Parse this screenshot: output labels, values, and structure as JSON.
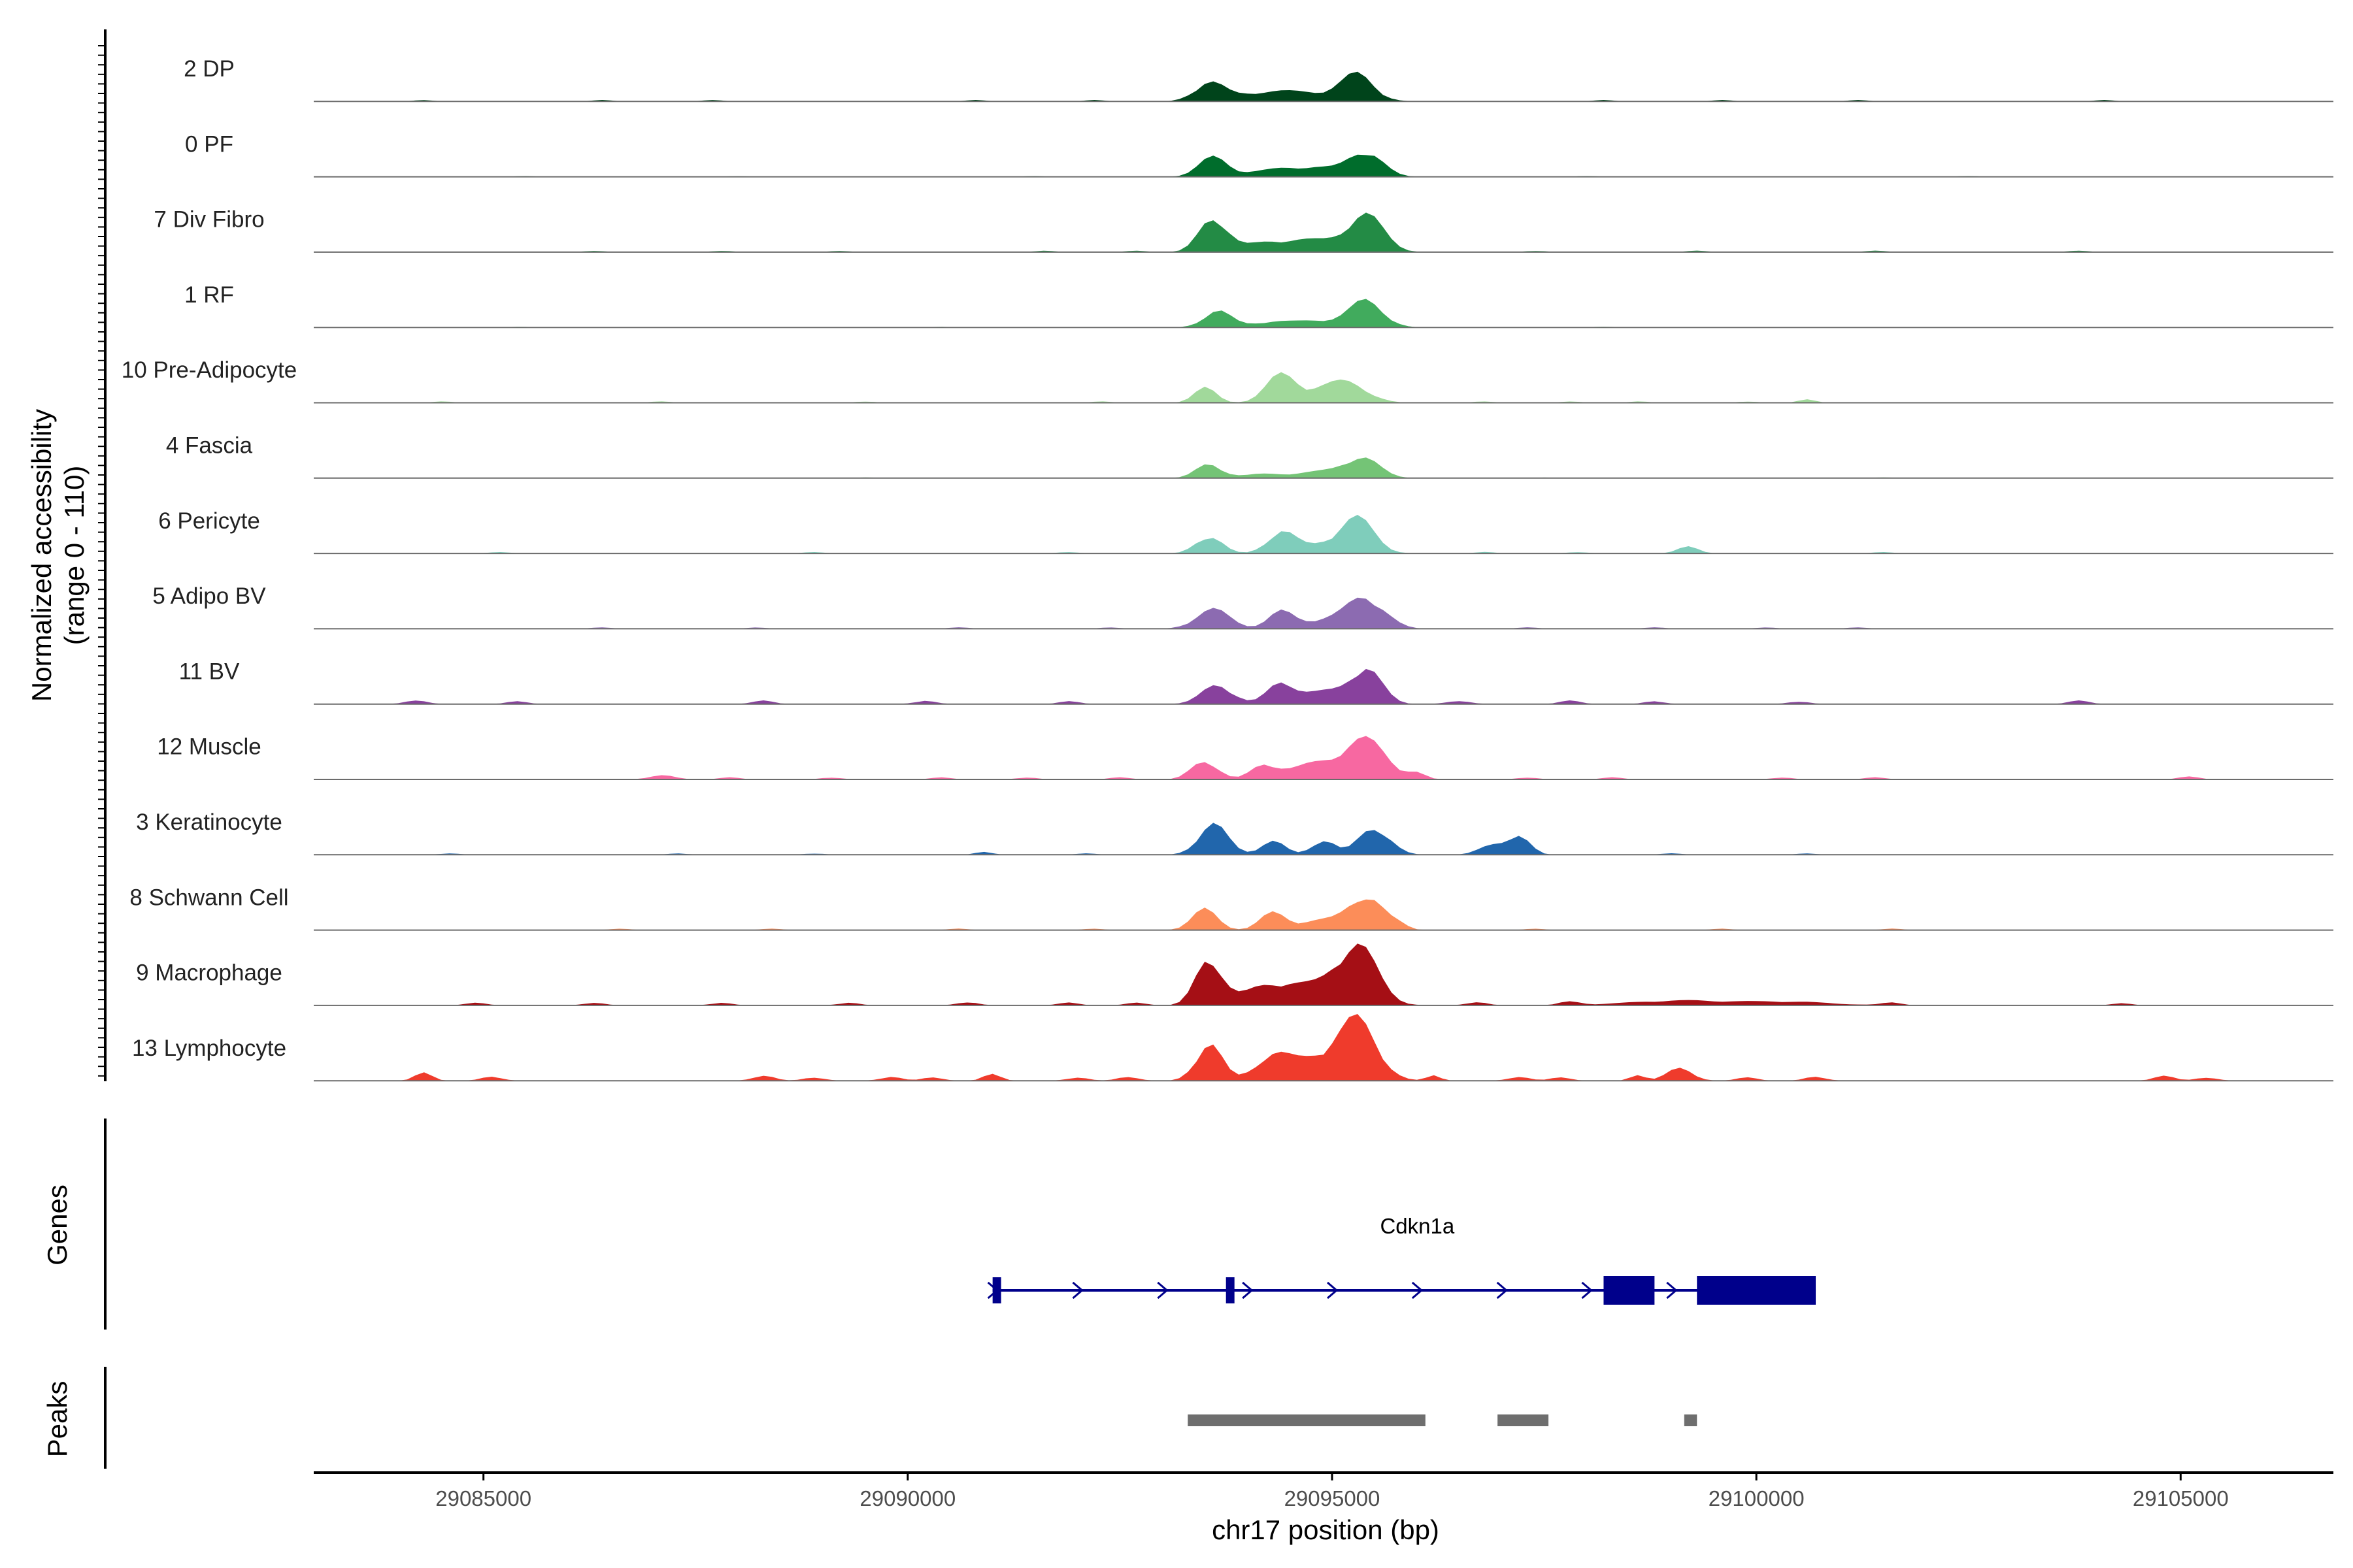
{
  "chart_data": {
    "type": "area",
    "title": "",
    "region": {
      "chrom": "chr17",
      "start": 29083000,
      "end": 29106800
    },
    "y_axis_title": [
      "Normalized accessibility",
      "(range 0 - 110)"
    ],
    "ylim": [
      0,
      110
    ],
    "x_axis_title": "chr17 position (bp)",
    "x_ticks": [
      29085000,
      29090000,
      29095000,
      29100000,
      29105000
    ],
    "x_tick_labels": [
      "29085000",
      "29090000",
      "29095000",
      "29100000",
      "29105000"
    ],
    "bin_size_bp": 100,
    "tracks": [
      {
        "name": "2 DP",
        "color": "#00441b",
        "peaks": [
          [
            29093550,
            170,
            26
          ],
          [
            29095300,
            190,
            35
          ],
          [
            29094100,
            350,
            8
          ],
          [
            29094700,
            450,
            12
          ]
        ],
        "noise": [
          [
            29084300,
            2
          ],
          [
            29086400,
            2
          ],
          [
            29087700,
            2
          ],
          [
            29090800,
            2
          ],
          [
            29092200,
            2
          ],
          [
            29098200,
            2
          ],
          [
            29099600,
            2
          ],
          [
            29101200,
            2
          ],
          [
            29104100,
            2
          ]
        ]
      },
      {
        "name": "0 PF",
        "color": "#006d2c",
        "peaks": [
          [
            29093600,
            170,
            28
          ],
          [
            29095400,
            190,
            36
          ],
          [
            29094300,
            300,
            9
          ],
          [
            29094850,
            300,
            12
          ]
        ],
        "noise": [
          [
            29085500,
            1
          ],
          [
            29088000,
            1
          ],
          [
            29091500,
            1
          ],
          [
            29098000,
            1
          ],
          [
            29102500,
            1
          ]
        ]
      },
      {
        "name": "7 Div Fibro",
        "color": "#238b45",
        "peaks": [
          [
            29093600,
            160,
            50
          ],
          [
            29095400,
            210,
            52
          ],
          [
            29094200,
            300,
            12
          ],
          [
            29094800,
            320,
            16
          ]
        ],
        "noise": [
          [
            29086300,
            2
          ],
          [
            29087800,
            2
          ],
          [
            29089200,
            2
          ],
          [
            29091600,
            2
          ],
          [
            29092700,
            2
          ],
          [
            29097400,
            2
          ],
          [
            29099300,
            2
          ],
          [
            29101400,
            2
          ],
          [
            29103800,
            2
          ]
        ]
      },
      {
        "name": "1 RF",
        "color": "#41ab5d",
        "peaks": [
          [
            29093650,
            160,
            24
          ],
          [
            29095400,
            200,
            38
          ],
          [
            29094300,
            250,
            8
          ],
          [
            29094850,
            250,
            9
          ]
        ],
        "noise": [
          [
            29085400,
            1
          ],
          [
            29090400,
            1
          ],
          [
            29098200,
            1
          ]
        ]
      },
      {
        "name": "10 Pre-Adipocyte",
        "color": "#a1d99b",
        "peaks": [
          [
            29093500,
            130,
            22
          ],
          [
            29094400,
            180,
            40
          ],
          [
            29095200,
            230,
            27
          ],
          [
            29094850,
            200,
            14
          ],
          [
            29100600,
            90,
            6
          ]
        ],
        "noise": [
          [
            29084500,
            2
          ],
          [
            29087100,
            2
          ],
          [
            29089500,
            2
          ],
          [
            29092300,
            2
          ],
          [
            29096800,
            2
          ],
          [
            29097800,
            2
          ],
          [
            29098600,
            2
          ],
          [
            29099900,
            2
          ]
        ]
      },
      {
        "name": "4 Fascia",
        "color": "#74c476",
        "peaks": [
          [
            29093550,
            150,
            20
          ],
          [
            29095350,
            200,
            30
          ],
          [
            29094200,
            250,
            6
          ],
          [
            29094850,
            250,
            9
          ]
        ],
        "noise": [
          [
            29089500,
            1
          ],
          [
            29097500,
            1
          ],
          [
            29101500,
            1
          ]
        ]
      },
      {
        "name": "6 Pericyte",
        "color": "#7fcdbb",
        "peaks": [
          [
            29093550,
            150,
            26
          ],
          [
            29094400,
            160,
            30
          ],
          [
            29095300,
            200,
            47
          ],
          [
            29094900,
            300,
            12
          ],
          [
            29099200,
            120,
            10
          ]
        ],
        "noise": [
          [
            29085200,
            2
          ],
          [
            29088900,
            2
          ],
          [
            29091900,
            2
          ],
          [
            29096800,
            2
          ],
          [
            29097900,
            2
          ],
          [
            29101500,
            2
          ]
        ]
      },
      {
        "name": "5 Adipo BV",
        "color": "#8c6bb1",
        "peaks": [
          [
            29093600,
            200,
            28
          ],
          [
            29094400,
            150,
            24
          ],
          [
            29095400,
            220,
            45
          ],
          [
            29094900,
            250,
            12
          ]
        ],
        "noise": [
          [
            29086400,
            2
          ],
          [
            29088200,
            2
          ],
          [
            29090600,
            2
          ],
          [
            29092400,
            2
          ],
          [
            29097300,
            2
          ],
          [
            29098800,
            2
          ],
          [
            29100100,
            2
          ],
          [
            29101200,
            2
          ]
        ]
      },
      {
        "name": "11 BV",
        "color": "#88419d",
        "peaks": [
          [
            29093650,
            180,
            28
          ],
          [
            29094400,
            160,
            30
          ],
          [
            29095400,
            180,
            52
          ],
          [
            29094900,
            250,
            18
          ],
          [
            29096500,
            150,
            4
          ]
        ],
        "noise": [
          [
            29084200,
            6
          ],
          [
            29085400,
            4
          ],
          [
            29088300,
            5
          ],
          [
            29090200,
            5
          ],
          [
            29091900,
            4
          ],
          [
            29097800,
            5
          ],
          [
            29098800,
            4
          ],
          [
            29100500,
            4
          ],
          [
            29103800,
            5
          ]
        ]
      },
      {
        "name": "12 Muscle",
        "color": "#f768a1",
        "peaks": [
          [
            29093500,
            150,
            28
          ],
          [
            29094200,
            150,
            20
          ],
          [
            29095400,
            250,
            55
          ],
          [
            29094800,
            300,
            22
          ],
          [
            29096000,
            100,
            8
          ],
          [
            29087100,
            150,
            6
          ]
        ],
        "noise": [
          [
            29087900,
            3
          ],
          [
            29089100,
            3
          ],
          [
            29090400,
            3
          ],
          [
            29091400,
            3
          ],
          [
            29092500,
            3
          ],
          [
            29097300,
            3
          ],
          [
            29098300,
            3
          ],
          [
            29100300,
            3
          ],
          [
            29101400,
            3
          ],
          [
            29105100,
            4
          ]
        ]
      },
      {
        "name": "3 Keratinocyte",
        "color": "#2166ac",
        "peaks": [
          [
            29093600,
            170,
            44
          ],
          [
            29094300,
            140,
            20
          ],
          [
            29094900,
            130,
            22
          ],
          [
            29095500,
            180,
            40
          ],
          [
            29096900,
            160,
            14
          ],
          [
            29097200,
            130,
            26
          ],
          [
            29090900,
            100,
            4
          ]
        ],
        "noise": [
          [
            29084600,
            2
          ],
          [
            29087300,
            2
          ],
          [
            29088900,
            2
          ],
          [
            29092100,
            2
          ],
          [
            29099000,
            2
          ],
          [
            29100600,
            2
          ]
        ]
      },
      {
        "name": "8 Schwann Cell",
        "color": "#fc8d59",
        "peaks": [
          [
            29093500,
            150,
            30
          ],
          [
            29094300,
            150,
            24
          ],
          [
            29095400,
            200,
            50
          ],
          [
            29094850,
            250,
            14
          ],
          [
            29095800,
            100,
            6
          ]
        ],
        "noise": [
          [
            29086600,
            2
          ],
          [
            29088400,
            2
          ],
          [
            29090600,
            2
          ],
          [
            29092200,
            2
          ],
          [
            29097400,
            2
          ],
          [
            29099600,
            2
          ],
          [
            29101600,
            2
          ]
        ]
      },
      {
        "name": "9 Macrophage",
        "color": "#a50f15",
        "peaks": [
          [
            29093550,
            150,
            68
          ],
          [
            29095300,
            230,
            80
          ],
          [
            29094200,
            300,
            20
          ],
          [
            29094750,
            400,
            25
          ],
          [
            29099100,
            600,
            7
          ],
          [
            29100400,
            500,
            5
          ]
        ],
        "noise": [
          [
            29084900,
            4
          ],
          [
            29086300,
            4
          ],
          [
            29087800,
            4
          ],
          [
            29089300,
            4
          ],
          [
            29090700,
            5
          ],
          [
            29091900,
            4
          ],
          [
            29092700,
            4
          ],
          [
            29096700,
            5
          ],
          [
            29097800,
            5
          ],
          [
            29101600,
            4
          ],
          [
            29104300,
            3
          ]
        ]
      },
      {
        "name": "13 Lymphocyte",
        "color": "#ef3b2c",
        "peaks": [
          [
            29093550,
            150,
            55
          ],
          [
            29095300,
            230,
            85
          ],
          [
            29094300,
            200,
            36
          ],
          [
            29094800,
            250,
            30
          ],
          [
            29091000,
            100,
            10
          ],
          [
            29084300,
            100,
            12
          ],
          [
            29099100,
            150,
            18
          ],
          [
            29096200,
            80,
            8
          ],
          [
            29098600,
            80,
            10
          ]
        ],
        "noise": [
          [
            29085100,
            6
          ],
          [
            29088300,
            8
          ],
          [
            29088900,
            5
          ],
          [
            29089800,
            6
          ],
          [
            29090300,
            5
          ],
          [
            29092000,
            5
          ],
          [
            29092600,
            6
          ],
          [
            29097200,
            6
          ],
          [
            29097700,
            5
          ],
          [
            29099900,
            5
          ],
          [
            29100700,
            6
          ],
          [
            29104800,
            7
          ],
          [
            29105300,
            5
          ]
        ]
      }
    ],
    "genes": [
      {
        "name": "Cdkn1a",
        "strand": "+",
        "start": 29091000,
        "end": 29100700,
        "exons": [
          [
            29091000,
            29091100,
            "utr"
          ],
          [
            29093750,
            29093850,
            "utr"
          ],
          [
            29098200,
            29098800,
            "cds"
          ],
          [
            29099300,
            29100700,
            "cds"
          ]
        ]
      }
    ],
    "peaks": [
      [
        29093300,
        29096100
      ],
      [
        29096950,
        29097550
      ],
      [
        29099150,
        29099300
      ]
    ]
  },
  "panels": {
    "genes_label": "Genes",
    "peaks_label": "Peaks"
  }
}
